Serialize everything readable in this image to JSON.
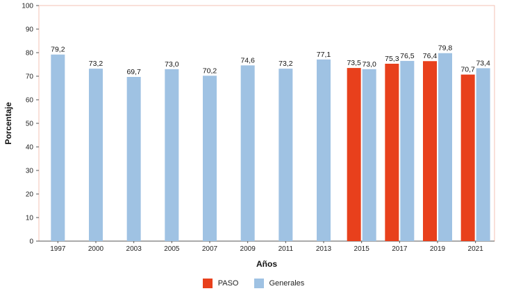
{
  "chart_data": {
    "type": "bar",
    "categories": [
      "1997",
      "2000",
      "2003",
      "2005",
      "2007",
      "2009",
      "2011",
      "2013",
      "2015",
      "2017",
      "2019",
      "2021"
    ],
    "series": [
      {
        "name": "PASO",
        "color": "#e8401c",
        "values": [
          null,
          null,
          null,
          null,
          null,
          null,
          null,
          null,
          73.5,
          75.3,
          76.4,
          70.7
        ],
        "labels": [
          "",
          "",
          "",
          "",
          "",
          "",
          "",
          "",
          "73,5",
          "75,3",
          "76,4",
          "70,7"
        ]
      },
      {
        "name": "Generales",
        "color": "#9fc2e3",
        "values": [
          79.2,
          73.2,
          69.7,
          73.0,
          70.2,
          74.6,
          73.2,
          77.1,
          73.0,
          76.5,
          79.8,
          73.4
        ],
        "labels": [
          "79,2",
          "73,2",
          "69,7",
          "73,0",
          "70,2",
          "74,6",
          "73,2",
          "77,1",
          "73,0",
          "76,5",
          "79,8",
          "73,4"
        ]
      }
    ],
    "ylim": [
      0,
      100
    ],
    "yticks": [
      "0",
      "10",
      "20",
      "30",
      "40",
      "50",
      "60",
      "70",
      "80",
      "90",
      "100"
    ],
    "xlabel": "Años",
    "ylabel": "Porcentaje",
    "grid": false,
    "legend_position": "bottom"
  }
}
